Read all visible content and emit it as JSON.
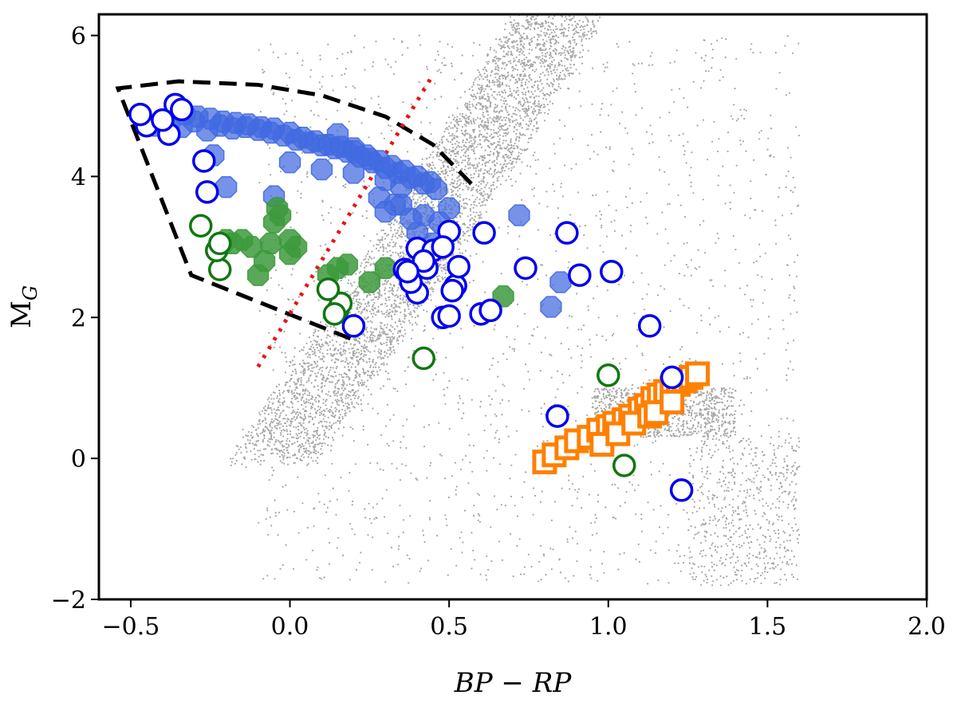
{
  "chart_data": {
    "type": "scatter",
    "title": "",
    "xlabel": "BP − RP",
    "ylabel_main": "M",
    "ylabel_sub": "G",
    "xlim": [
      -0.6,
      2.0
    ],
    "ylim": [
      6.3,
      -2.0
    ],
    "y_inverted": true,
    "grid": false,
    "xticks": [
      -0.5,
      0.0,
      0.5,
      1.0,
      1.5,
      2.0
    ],
    "xtick_labels": [
      "−0.5",
      "0.0",
      "0.5",
      "1.0",
      "1.5",
      "2.0"
    ],
    "yticks": [
      -2,
      0,
      2,
      4,
      6
    ],
    "ytick_labels": [
      "−2",
      "0",
      "2",
      "4",
      "6"
    ],
    "colors": {
      "background_stars": "#a6a6a6",
      "blue_filled": "#4169e1",
      "blue_open": "#0000ee",
      "green_filled": "#3d9a3d",
      "green_open": "#117711",
      "orange": "#ff8000",
      "selection_boundary": "#000000",
      "divider": "#ee1111"
    },
    "background_density_sources": [
      {
        "x": [
          -0.05,
          0.35
        ],
        "y": [
          0.0,
          2.6
        ],
        "n": 1700
      },
      {
        "x": [
          0.35,
          0.85
        ],
        "y": [
          2.6,
          6.3
        ],
        "n": 2600
      },
      {
        "x": [
          0.95,
          1.4
        ],
        "y": [
          0.3,
          1.0
        ],
        "n": 900
      },
      {
        "x": [
          1.25,
          1.6
        ],
        "y": [
          -1.8,
          0.3
        ],
        "n": 500
      },
      {
        "x": [
          -0.1,
          1.6
        ],
        "y": [
          -1.8,
          6.0
        ],
        "n": 1700
      }
    ],
    "selection_boundary": {
      "x": [
        0.19,
        -0.31,
        -0.54,
        -0.35,
        -0.1,
        0.1,
        0.3,
        0.45,
        0.58
      ],
      "y": [
        1.7,
        2.6,
        5.25,
        5.35,
        5.3,
        5.15,
        4.85,
        4.45,
        3.85
      ]
    },
    "divider_line": {
      "x": [
        -0.1,
        0.45
      ],
      "y": [
        1.3,
        5.45
      ]
    },
    "series": [
      {
        "name": "blue-filled",
        "marker": "octagon-filled",
        "x": [
          -0.42,
          -0.38,
          -0.34,
          -0.3,
          -0.26,
          -0.22,
          -0.18,
          -0.14,
          -0.1,
          -0.06,
          -0.02,
          0.02,
          0.06,
          0.1,
          0.14,
          0.18,
          0.22,
          0.26,
          0.3,
          0.34,
          0.38,
          0.42,
          0.46,
          -0.33,
          -0.29,
          -0.25,
          -0.21,
          -0.17,
          -0.13,
          -0.09,
          -0.05,
          0.0,
          0.04,
          0.08,
          0.12,
          0.16,
          0.2,
          0.24,
          0.28,
          0.32,
          0.36,
          0.4,
          0.44,
          0.0,
          0.1,
          0.2,
          0.3,
          0.35,
          0.42,
          0.47,
          0.5,
          0.28,
          0.33,
          0.38,
          -0.05,
          -0.2,
          -0.24,
          0.25,
          0.82,
          0.72,
          0.85,
          0.4,
          0.45,
          0.3,
          0.35,
          0.2,
          0.15
        ],
        "y": [
          4.72,
          4.75,
          4.7,
          4.78,
          4.65,
          4.72,
          4.68,
          4.7,
          4.66,
          4.62,
          4.58,
          4.52,
          4.48,
          4.44,
          4.4,
          4.35,
          4.28,
          4.2,
          4.12,
          4.05,
          3.98,
          3.9,
          3.82,
          4.88,
          4.85,
          4.82,
          4.78,
          4.76,
          4.74,
          4.7,
          4.68,
          4.62,
          4.55,
          4.5,
          4.45,
          4.42,
          4.36,
          4.3,
          4.22,
          4.15,
          4.08,
          4.0,
          3.92,
          4.2,
          4.1,
          4.05,
          3.95,
          3.6,
          3.45,
          3.35,
          3.55,
          3.7,
          3.6,
          3.4,
          3.72,
          3.85,
          4.3,
          4.25,
          2.15,
          3.45,
          2.5,
          3.2,
          3.05,
          3.5,
          3.85,
          4.4,
          4.6
        ]
      },
      {
        "name": "green-filled",
        "marker": "octagon-filled",
        "x": [
          -0.22,
          -0.18,
          -0.15,
          -0.12,
          -0.08,
          -0.05,
          -0.03,
          0.0,
          0.02,
          -0.1,
          -0.06,
          -0.04,
          0.12,
          0.15,
          0.18,
          0.25,
          0.3,
          0.67,
          0.0,
          -0.2
        ],
        "y": [
          3.0,
          3.05,
          3.1,
          3.0,
          2.8,
          3.35,
          3.45,
          3.1,
          3.0,
          2.6,
          3.05,
          3.55,
          2.6,
          2.7,
          2.75,
          2.5,
          2.7,
          2.3,
          2.9,
          3.1
        ]
      },
      {
        "name": "orange-squares",
        "marker": "square-open",
        "x": [
          0.8,
          0.83,
          0.87,
          0.9,
          0.94,
          0.97,
          1.0,
          1.02,
          1.05,
          1.07,
          1.1,
          1.12,
          1.14,
          1.16,
          1.18,
          1.2,
          1.22,
          1.24,
          1.26,
          1.28,
          0.98,
          1.03,
          1.08,
          1.13,
          1.15,
          1.2
        ],
        "y": [
          -0.05,
          0.05,
          0.15,
          0.25,
          0.3,
          0.4,
          0.45,
          0.5,
          0.55,
          0.6,
          0.7,
          0.75,
          0.85,
          0.9,
          0.95,
          1.0,
          1.05,
          1.1,
          1.15,
          1.2,
          0.2,
          0.35,
          0.5,
          0.6,
          0.65,
          0.8
        ]
      },
      {
        "name": "green-open",
        "marker": "circle-open",
        "x": [
          1.05,
          1.0,
          0.42,
          0.15,
          0.16,
          0.12,
          -0.22,
          -0.23,
          -0.22,
          -0.28,
          0.14
        ],
        "y": [
          -0.1,
          1.18,
          1.42,
          2.1,
          2.2,
          2.4,
          2.68,
          2.95,
          3.05,
          3.3,
          2.05
        ]
      },
      {
        "name": "blue-open",
        "marker": "circle-open",
        "x": [
          1.23,
          0.84,
          1.2,
          1.13,
          0.2,
          0.48,
          0.5,
          0.6,
          0.63,
          0.52,
          0.53,
          0.4,
          0.38,
          0.43,
          0.36,
          0.4,
          0.45,
          0.5,
          0.48,
          0.42,
          0.37,
          0.51,
          0.74,
          0.91,
          1.01,
          0.87,
          0.61,
          -0.26,
          -0.27,
          -0.45,
          -0.47,
          -0.38,
          -0.36,
          -0.4,
          -0.34
        ],
        "y": [
          -0.45,
          0.6,
          1.15,
          1.88,
          1.88,
          2.0,
          2.02,
          2.05,
          2.1,
          2.45,
          2.72,
          2.35,
          2.5,
          2.7,
          2.68,
          2.98,
          2.95,
          3.22,
          3.0,
          2.8,
          2.65,
          2.38,
          2.7,
          2.6,
          2.65,
          3.2,
          3.2,
          3.78,
          4.22,
          4.72,
          4.88,
          4.6,
          5.02,
          4.8,
          4.95
        ]
      }
    ]
  }
}
